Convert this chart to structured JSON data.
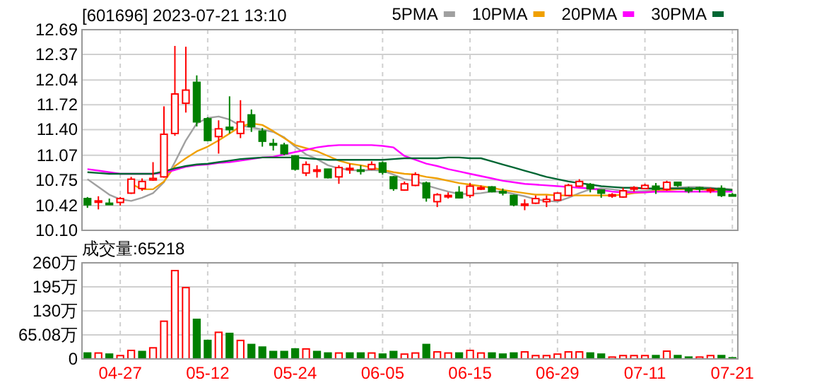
{
  "chart_data": [
    {
      "type": "candlestick",
      "title": "[601696] 2023-07-21 13:10",
      "legend": "top right",
      "grid": true,
      "tick_labels": "y",
      "categories": [
        null,
        null,
        null,
        null,
        null,
        null,
        null,
        null,
        null,
        null,
        null,
        null,
        null,
        null,
        null,
        null,
        null,
        null,
        null,
        null,
        null,
        null,
        null,
        null,
        null,
        null,
        null,
        null,
        null,
        null,
        null,
        null,
        null,
        null,
        null,
        null,
        null,
        null,
        null,
        null,
        null,
        null,
        null,
        null,
        null,
        null,
        null,
        null,
        null,
        null,
        null,
        null,
        null,
        null,
        null,
        null,
        null,
        null,
        null,
        null
      ],
      "ylim": [
        10.1,
        12.69
      ],
      "yticks": [
        {
          "value": 10.1,
          "label": "10.10"
        },
        10.42,
        10.75,
        11.07,
        {
          "value": 11.4,
          "label": "11.40"
        },
        11.72,
        12.04,
        12.37,
        12.69
      ],
      "ohlc": [
        [
          10.51,
          10.53,
          10.39,
          10.43
        ],
        [
          10.47,
          10.54,
          10.37,
          10.48
        ],
        [
          10.45,
          10.51,
          10.43,
          10.44
        ],
        [
          10.46,
          10.53,
          10.42,
          10.51
        ],
        [
          10.58,
          10.79,
          10.57,
          10.76
        ],
        [
          10.64,
          10.77,
          10.61,
          10.73
        ],
        [
          10.75,
          10.98,
          10.74,
          10.77
        ],
        [
          10.79,
          11.7,
          10.78,
          11.34
        ],
        [
          11.35,
          12.48,
          11.32,
          11.86
        ],
        [
          11.74,
          12.47,
          11.62,
          11.91
        ],
        [
          12.01,
          12.1,
          11.44,
          11.5
        ],
        [
          11.54,
          11.56,
          11.25,
          11.26
        ],
        [
          11.31,
          11.52,
          11.09,
          11.41
        ],
        [
          11.43,
          11.83,
          11.35,
          11.4
        ],
        [
          11.35,
          11.78,
          11.29,
          11.5
        ],
        [
          11.59,
          11.66,
          11.37,
          11.44
        ],
        [
          11.38,
          11.42,
          11.18,
          11.25
        ],
        [
          11.22,
          11.28,
          11.13,
          11.2
        ],
        [
          11.2,
          11.23,
          11.07,
          11.09
        ],
        [
          11.06,
          11.07,
          10.87,
          10.89
        ],
        [
          10.84,
          10.99,
          10.8,
          10.95
        ],
        [
          10.87,
          10.94,
          10.78,
          10.88
        ],
        [
          10.89,
          10.89,
          10.77,
          10.78
        ],
        [
          10.79,
          10.94,
          10.7,
          10.91
        ],
        [
          10.89,
          10.96,
          10.83,
          10.9
        ],
        [
          10.88,
          10.94,
          10.82,
          10.87
        ],
        [
          10.89,
          10.99,
          10.88,
          10.95
        ],
        [
          10.97,
          10.99,
          10.82,
          10.85
        ],
        [
          10.79,
          10.8,
          10.61,
          10.64
        ],
        [
          10.62,
          10.73,
          10.61,
          10.7
        ],
        [
          10.68,
          10.85,
          10.67,
          10.82
        ],
        [
          10.71,
          10.73,
          10.47,
          10.52
        ],
        [
          10.47,
          10.58,
          10.4,
          10.56
        ],
        [
          10.54,
          10.59,
          10.51,
          10.55
        ],
        [
          10.59,
          10.67,
          10.51,
          10.52
        ],
        [
          10.55,
          10.71,
          10.52,
          10.67
        ],
        [
          10.64,
          10.68,
          10.62,
          10.65
        ],
        [
          10.66,
          10.67,
          10.59,
          10.6
        ],
        [
          10.6,
          10.64,
          10.55,
          10.59
        ],
        [
          10.55,
          10.56,
          10.41,
          10.43
        ],
        [
          10.43,
          10.5,
          10.36,
          10.44
        ],
        [
          10.45,
          10.55,
          10.44,
          10.51
        ],
        [
          10.47,
          10.55,
          10.4,
          10.5
        ],
        [
          10.49,
          10.59,
          10.48,
          10.58
        ],
        [
          10.55,
          10.7,
          10.54,
          10.68
        ],
        [
          10.67,
          10.76,
          10.66,
          10.73
        ],
        [
          10.69,
          10.71,
          10.59,
          10.64
        ],
        [
          10.62,
          10.63,
          10.52,
          10.58
        ],
        [
          10.55,
          10.58,
          10.52,
          10.56
        ],
        [
          10.53,
          10.65,
          10.52,
          10.61
        ],
        [
          10.64,
          10.67,
          10.6,
          10.65
        ],
        [
          10.64,
          10.7,
          10.63,
          10.68
        ],
        [
          10.67,
          10.71,
          10.57,
          10.63
        ],
        [
          10.63,
          10.74,
          10.61,
          10.72
        ],
        [
          10.72,
          10.72,
          10.66,
          10.68
        ],
        [
          10.64,
          10.66,
          10.58,
          10.61
        ],
        [
          10.65,
          10.66,
          10.59,
          10.64
        ],
        [
          10.62,
          10.65,
          10.58,
          10.63
        ],
        [
          10.64,
          10.68,
          10.53,
          10.55
        ],
        [
          10.56,
          10.58,
          10.54,
          10.55
        ]
      ],
      "series": [
        {
          "name": "5PMA",
          "type": "line",
          "color": "#a0a0a0",
          "values": [
            10.76,
            10.66,
            10.56,
            10.5,
            10.48,
            10.52,
            10.58,
            10.72,
            10.98,
            11.26,
            11.48,
            11.55,
            11.57,
            11.53,
            11.45,
            11.43,
            11.4,
            11.37,
            11.3,
            11.18,
            11.08,
            11.02,
            10.94,
            10.9,
            10.88,
            10.87,
            10.88,
            10.87,
            10.82,
            10.76,
            10.74,
            10.68,
            10.64,
            10.6,
            10.57,
            10.57,
            10.58,
            10.6,
            10.6,
            10.57,
            10.54,
            10.5,
            10.48,
            10.47,
            10.52,
            10.58,
            10.63,
            10.64,
            10.63,
            10.61,
            10.6,
            10.61,
            10.62,
            10.64,
            10.65,
            10.66,
            10.66,
            10.65,
            10.64,
            10.63
          ]
        },
        {
          "name": "10PMA",
          "type": "line",
          "color": "#f0a000",
          "values": [
            null,
            null,
            null,
            null,
            10.7,
            10.63,
            10.63,
            10.73,
            10.93,
            11.03,
            11.12,
            11.18,
            11.26,
            11.35,
            11.44,
            11.48,
            11.46,
            11.38,
            11.29,
            11.2,
            11.16,
            11.12,
            11.06,
            11.0,
            10.96,
            10.94,
            10.91,
            10.88,
            10.85,
            10.83,
            10.82,
            10.79,
            10.77,
            10.74,
            10.71,
            10.69,
            10.67,
            10.65,
            10.62,
            10.6,
            10.58,
            10.56,
            10.56,
            10.55,
            10.55,
            10.55,
            10.55,
            10.55,
            10.55,
            10.56,
            10.58,
            10.59,
            10.61,
            10.62,
            10.63,
            10.63,
            10.63,
            10.62,
            10.62,
            10.62
          ]
        },
        {
          "name": "20PMA",
          "type": "line",
          "color": "#ff00ff",
          "values": [
            10.89,
            10.87,
            10.85,
            10.83,
            10.83,
            10.83,
            10.83,
            10.84,
            10.88,
            10.92,
            10.94,
            10.95,
            10.97,
            10.98,
            11.0,
            11.02,
            11.04,
            11.05,
            11.08,
            11.11,
            11.14,
            11.17,
            11.19,
            11.2,
            11.2,
            11.2,
            11.2,
            11.19,
            11.17,
            11.06,
            11.01,
            10.96,
            10.93,
            10.89,
            10.86,
            10.83,
            10.8,
            10.77,
            10.74,
            10.72,
            10.7,
            10.69,
            10.68,
            10.67,
            10.66,
            10.65,
            10.64,
            10.62,
            10.6,
            10.59,
            10.59,
            10.59,
            10.6,
            10.6,
            10.6,
            10.6,
            10.6,
            10.6,
            10.6,
            10.6
          ]
        },
        {
          "name": "30PMA",
          "type": "line",
          "color": "#006633",
          "values": [
            10.85,
            10.84,
            10.83,
            10.83,
            10.83,
            10.83,
            10.83,
            10.86,
            10.9,
            10.93,
            10.95,
            10.96,
            10.98,
            11.0,
            11.02,
            11.03,
            11.04,
            11.04,
            11.04,
            11.04,
            11.03,
            11.02,
            11.01,
            11.01,
            11.01,
            11.01,
            11.01,
            11.01,
            11.02,
            11.03,
            11.03,
            11.03,
            11.03,
            11.04,
            11.04,
            11.03,
            11.03,
            10.99,
            10.95,
            10.91,
            10.87,
            10.83,
            10.79,
            10.76,
            10.73,
            10.71,
            10.69,
            10.67,
            10.66,
            10.65,
            10.65,
            10.64,
            10.64,
            10.64,
            10.64,
            10.64,
            10.64,
            10.64,
            10.63,
            10.62
          ]
        }
      ]
    },
    {
      "type": "bar",
      "title": "成交量:65218",
      "grid": true,
      "categories": [
        null,
        null,
        null,
        "04-27",
        null,
        null,
        null,
        null,
        null,
        null,
        null,
        "05-12",
        null,
        null,
        null,
        null,
        null,
        null,
        null,
        "05-24",
        null,
        null,
        null,
        null,
        null,
        null,
        null,
        "06-05",
        null,
        null,
        null,
        null,
        null,
        null,
        null,
        "06-15",
        null,
        null,
        null,
        null,
        null,
        null,
        null,
        "06-29",
        null,
        null,
        null,
        null,
        null,
        null,
        null,
        "07-11",
        null,
        null,
        null,
        null,
        null,
        null,
        null,
        "07-21"
      ],
      "ylim": [
        0,
        260
      ],
      "yticks": [
        0,
        {
          "value": 65.08,
          "label": "65.08万"
        },
        {
          "value": 130,
          "label": "130万"
        },
        {
          "value": 195,
          "label": "195万"
        },
        {
          "value": 260,
          "label": "260万"
        }
      ],
      "values": [
        16,
        16,
        13,
        9,
        23,
        20,
        30,
        102,
        239,
        193,
        107,
        50,
        72,
        69,
        50,
        39,
        32,
        20,
        20,
        27,
        27,
        20,
        16,
        16,
        16,
        16,
        16,
        13,
        20,
        13,
        16,
        39,
        19,
        16,
        16,
        23,
        16,
        16,
        13,
        16,
        19,
        9,
        9,
        13,
        19,
        19,
        16,
        13,
        5,
        9,
        9,
        9,
        9,
        21,
        9,
        5,
        5,
        9,
        9,
        3
      ],
      "colors": [
        "#008000",
        "#ff0000",
        "#008000",
        "#ff0000",
        "#ff0000",
        "#008000",
        "#ff0000",
        "#ff0000",
        "#ff0000",
        "#ff0000",
        "#008000",
        "#008000",
        "#ff0000",
        "#008000",
        "#ff0000",
        "#008000",
        "#008000",
        "#008000",
        "#008000",
        "#008000",
        "#ff0000",
        "#008000",
        "#008000",
        "#ff0000",
        "#008000",
        "#008000",
        "#ff0000",
        "#008000",
        "#008000",
        "#ff0000",
        "#ff0000",
        "#008000",
        "#ff0000",
        "#ff0000",
        "#008000",
        "#ff0000",
        "#ff0000",
        "#008000",
        "#008000",
        "#008000",
        "#ff0000",
        "#ff0000",
        "#ff0000",
        "#ff0000",
        "#ff0000",
        "#ff0000",
        "#008000",
        "#008000",
        "#ff0000",
        "#ff0000",
        "#ff0000",
        "#ff0000",
        "#008000",
        "#ff0000",
        "#008000",
        "#008000",
        "#ff0000",
        "#ff0000",
        "#008000",
        "#008000"
      ]
    }
  ]
}
